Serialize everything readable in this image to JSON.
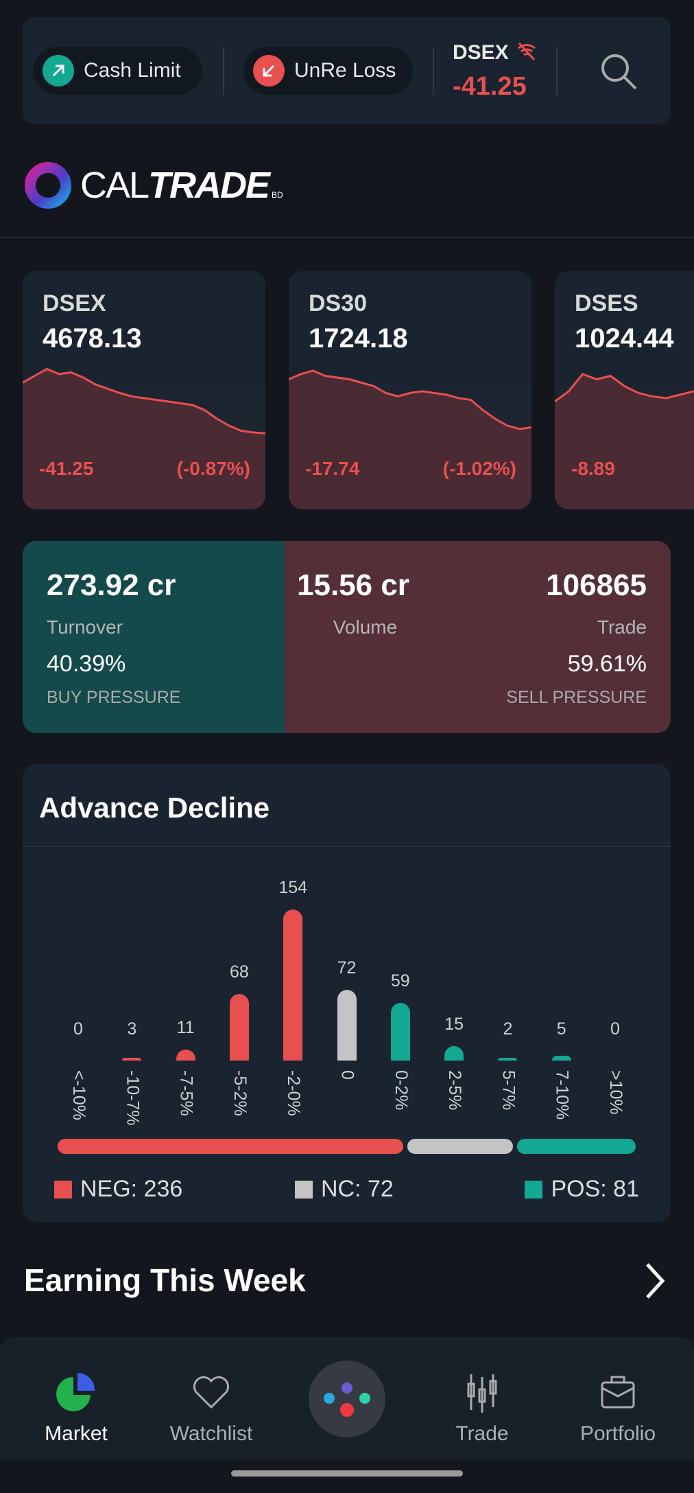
{
  "top": {
    "cash_limit": "Cash Limit",
    "unre_loss": "UnRe Loss",
    "index_name": "DSEX",
    "index_change": "-41.25"
  },
  "logo": {
    "text_light": "CAL",
    "text_bold": "TRADE",
    "suffix": "BD"
  },
  "indices": [
    {
      "name": "DSEX",
      "value": "4678.13",
      "change": "-41.25",
      "pct": "(-0.87%)",
      "spark": [
        62,
        70,
        78,
        72,
        74,
        68,
        60,
        55,
        50,
        46,
        44,
        42,
        40,
        38,
        36,
        30,
        20,
        12,
        6,
        4,
        3
      ]
    },
    {
      "name": "DS30",
      "value": "1724.18",
      "change": "-17.74",
      "pct": "(-1.02%)",
      "spark": [
        66,
        72,
        76,
        70,
        68,
        66,
        62,
        58,
        50,
        46,
        50,
        52,
        50,
        48,
        44,
        42,
        30,
        20,
        12,
        8,
        10
      ]
    },
    {
      "name": "DSES",
      "value": "1024.44",
      "change": "-8.89",
      "pct": "",
      "spark": [
        40,
        52,
        72,
        66,
        70,
        58,
        50,
        46,
        44,
        48,
        52
      ]
    }
  ],
  "stats": {
    "turnover_value": "273.92 cr",
    "turnover_label": "Turnover",
    "buy_pct": "40.39%",
    "buy_label": "BUY PRESSURE",
    "volume_value": "15.56 cr",
    "volume_label": "Volume",
    "trade_value": "106865",
    "trade_label": "Trade",
    "sell_pct": "59.61%",
    "sell_label": "SELL PRESSURE",
    "buy_fraction": 0.4039
  },
  "advance_decline": {
    "title": "Advance Decline",
    "legend": {
      "neg": "NEG: 236",
      "nc": "NC: 72",
      "pos": "POS: 81"
    },
    "totals": {
      "neg": 236,
      "nc": 72,
      "pos": 81
    }
  },
  "chart_data": {
    "type": "bar",
    "title": "Advance Decline",
    "categories": [
      "<-10%",
      "-10-7%",
      "-7-5%",
      "-5-2%",
      "-2-0%",
      "0",
      "0-2%",
      "2-5%",
      "5-7%",
      "7-10%",
      ">10%"
    ],
    "values": [
      0,
      3,
      11,
      68,
      154,
      72,
      59,
      15,
      2,
      5,
      0
    ],
    "labels": [
      "0",
      "3",
      "11",
      "68",
      "154",
      "72",
      "59",
      "15",
      "2",
      "5",
      "0"
    ],
    "groups": [
      "neg",
      "neg",
      "neg",
      "neg",
      "neg",
      "nc",
      "pos",
      "pos",
      "pos",
      "pos",
      "pos"
    ],
    "colors": {
      "neg": "#e84f4f",
      "nc": "#c4c4c4",
      "pos": "#13a892"
    }
  },
  "earning": {
    "title": "Earning This Week"
  },
  "nav": [
    {
      "label": "Market"
    },
    {
      "label": "Watchlist"
    },
    {
      "label": "Trade"
    },
    {
      "label": "Portfolio"
    }
  ]
}
